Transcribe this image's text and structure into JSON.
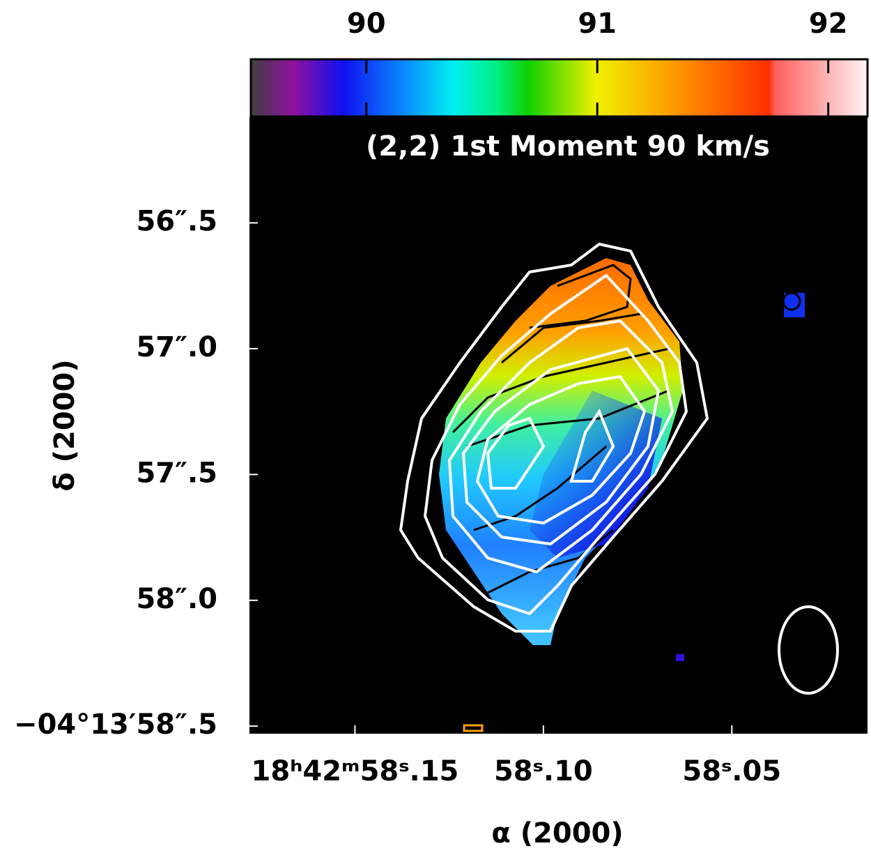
{
  "chart_data": {
    "type": "heatmap",
    "title": "(2,2) 1st Moment 90 km/s",
    "xlabel": "α (2000)",
    "ylabel": "δ (2000)",
    "xlim": [
      58.178,
      58.014
    ],
    "xticks": [
      {
        "value": 58.15,
        "label": "18ʰ42ᵐ58ˢ.15"
      },
      {
        "value": 58.1,
        "label": "58ˢ.10"
      },
      {
        "value": 58.05,
        "label": "58ˢ.05"
      }
    ],
    "ylim": [
      58.53,
      56.08
    ],
    "yticks": [
      {
        "value": 56.5,
        "label": "56″.5"
      },
      {
        "value": 57.0,
        "label": "57″.0"
      },
      {
        "value": 57.5,
        "label": "57″.5"
      },
      {
        "value": 58.0,
        "label": "58″.0"
      },
      {
        "value": 58.5,
        "label": "−04°13′58″.5"
      }
    ],
    "colorbar": {
      "lim": [
        89.5,
        92.17
      ],
      "ticks": [
        90,
        91,
        92
      ]
    }
  }
}
